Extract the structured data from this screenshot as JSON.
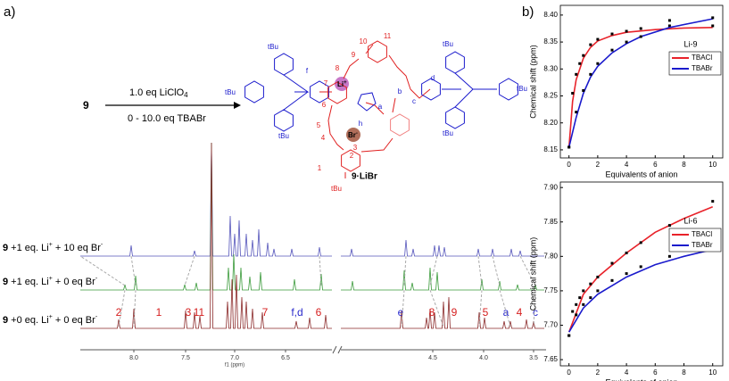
{
  "panel_labels": [
    "a)",
    "b)"
  ],
  "scheme": {
    "reactant": "9",
    "reagent1": "1.0 eq LiClO",
    "reagent1_sub": "4",
    "reagent2": "0 - 10.0 eq TBABr",
    "product": "9·LiBr",
    "labels": [
      "tBu",
      "tBu",
      "tBu",
      "tBu",
      "tBu",
      "tBu",
      "tBu",
      "10",
      "11",
      "9",
      "8",
      "7",
      "6",
      "5",
      "4",
      "3",
      "2",
      "1",
      "f",
      "d",
      "b",
      "c",
      "a",
      "h",
      "Li",
      "+",
      "Br",
      "-"
    ]
  },
  "spectra": {
    "traces": [
      {
        "compound": "9",
        "part1": " +1 eq. Li",
        "sup1": "+",
        "part2": " + 10 eq Br",
        "sup2": "-",
        "color": "#5555bb"
      },
      {
        "compound": "9",
        "part1": " +1 eq. Li",
        "sup1": "+",
        "part2": " + 0 eq Br",
        "sup2": "-",
        "color": "#3a9a3a"
      },
      {
        "compound": "9",
        "part1": " +0 eq. Li",
        "sup1": "+",
        "part2": " + 0 eq Br",
        "sup2": "-",
        "color": "#8b2a2a"
      }
    ],
    "axis_ticks": [
      "8.0",
      "7.5",
      "7.0",
      "6.5",
      "4.5",
      "4.0",
      "3.5"
    ],
    "axis_label": "f1 (ppm)",
    "peak_labels": [
      {
        "text": "2",
        "color": "#d62020"
      },
      {
        "text": "1",
        "color": "#d62020"
      },
      {
        "text": "3",
        "color": "#d62020"
      },
      {
        "text": "11",
        "color": "#d62020"
      },
      {
        "text": "7",
        "color": "#d62020"
      },
      {
        "text": "f,d",
        "color": "#2a2acc"
      },
      {
        "text": "6",
        "color": "#d62020"
      },
      {
        "text": "e",
        "color": "#2a2acc"
      },
      {
        "text": "8",
        "color": "#d62020"
      },
      {
        "text": "9",
        "color": "#d62020"
      },
      {
        "text": "5",
        "color": "#d62020"
      },
      {
        "text": "a",
        "color": "#2a2acc"
      },
      {
        "text": "4",
        "color": "#d62020"
      },
      {
        "text": "c",
        "color": "#2a2acc"
      }
    ]
  },
  "chart_data": [
    {
      "type": "scatter",
      "annotation": "Li-9",
      "xlabel": "Equivalents of anion",
      "ylabel": "Chemical shift (ppm)",
      "xlim": [
        -0.6,
        10.7
      ],
      "xticks": [
        0,
        2,
        4,
        6,
        8,
        10
      ],
      "ylim": [
        8.135,
        8.418
      ],
      "yticks": [
        8.15,
        {
          "value": 8.2,
          "label": "8.20"
        },
        8.25,
        {
          "value": 8.3,
          "label": "8.30"
        },
        8.35,
        {
          "value": 8.4,
          "label": "8.40"
        }
      ],
      "legend": "right",
      "series": [
        {
          "name": "TBACl",
          "color": "#e8222a",
          "x": [
            0,
            0.25,
            0.5,
            0.75,
            1,
            1.5,
            2,
            3,
            4,
            5,
            7,
            10
          ],
          "values": [
            8.155,
            8.255,
            8.29,
            8.31,
            8.325,
            8.345,
            8.355,
            8.365,
            8.37,
            8.375,
            8.38,
            8.38
          ],
          "fit": {
            "x": [
              0,
              0.25,
              0.5,
              1,
              1.5,
              2,
              3,
              4,
              6,
              8,
              10
            ],
            "values": [
              8.155,
              8.24,
              8.28,
              8.32,
              8.34,
              8.352,
              8.362,
              8.368,
              8.373,
              8.376,
              8.377
            ]
          }
        },
        {
          "name": "TBABr",
          "color": "#1a1acc",
          "x": [
            0,
            0.5,
            1,
            1.5,
            2,
            3,
            4,
            5,
            7,
            10
          ],
          "values": [
            8.155,
            8.22,
            8.26,
            8.29,
            8.31,
            8.335,
            8.35,
            8.36,
            8.39,
            8.395
          ],
          "fit": {
            "x": [
              0,
              0.5,
              1,
              1.5,
              2,
              3,
              4,
              5,
              7,
              10
            ],
            "values": [
              8.155,
              8.21,
              8.255,
              8.285,
              8.305,
              8.33,
              8.347,
              8.36,
              8.377,
              8.393
            ]
          }
        }
      ]
    },
    {
      "type": "scatter",
      "annotation": "Li-6",
      "xlabel": "Equivalents of anion",
      "ylabel": "Chemical shift (ppm)",
      "xlim": [
        -0.6,
        10.7
      ],
      "xticks": [
        0,
        2,
        4,
        6,
        8,
        10
      ],
      "ylim": [
        7.641,
        7.908
      ],
      "yticks": [
        7.65,
        {
          "value": 7.7,
          "label": "7.70"
        },
        7.75,
        {
          "value": 7.8,
          "label": "7.80"
        },
        7.85,
        {
          "value": 7.9,
          "label": "7.90"
        }
      ],
      "legend": "right",
      "series": [
        {
          "name": "TBACl",
          "color": "#e8222a",
          "x": [
            0,
            0.25,
            0.5,
            0.75,
            1,
            1.5,
            2,
            3,
            4,
            5,
            7,
            10
          ],
          "values": [
            7.685,
            7.72,
            7.73,
            7.74,
            7.75,
            7.76,
            7.77,
            7.79,
            7.805,
            7.82,
            7.845,
            7.88
          ],
          "fit": {
            "x": [
              0,
              1,
              2,
              4,
              6,
              8,
              10
            ],
            "values": [
              7.69,
              7.745,
              7.77,
              7.805,
              7.835,
              7.855,
              7.872
            ]
          }
        },
        {
          "name": "TBABr",
          "color": "#1a1acc",
          "x": [
            0,
            0.5,
            1,
            1.5,
            2,
            3,
            4,
            5,
            7,
            10
          ],
          "values": [
            7.685,
            7.715,
            7.73,
            7.74,
            7.75,
            7.765,
            7.775,
            7.785,
            7.8,
            7.81
          ],
          "fit": {
            "x": [
              0,
              1,
              2,
              4,
              6,
              8,
              10
            ],
            "values": [
              7.69,
              7.725,
              7.745,
              7.77,
              7.788,
              7.8,
              7.81
            ]
          }
        }
      ]
    }
  ]
}
